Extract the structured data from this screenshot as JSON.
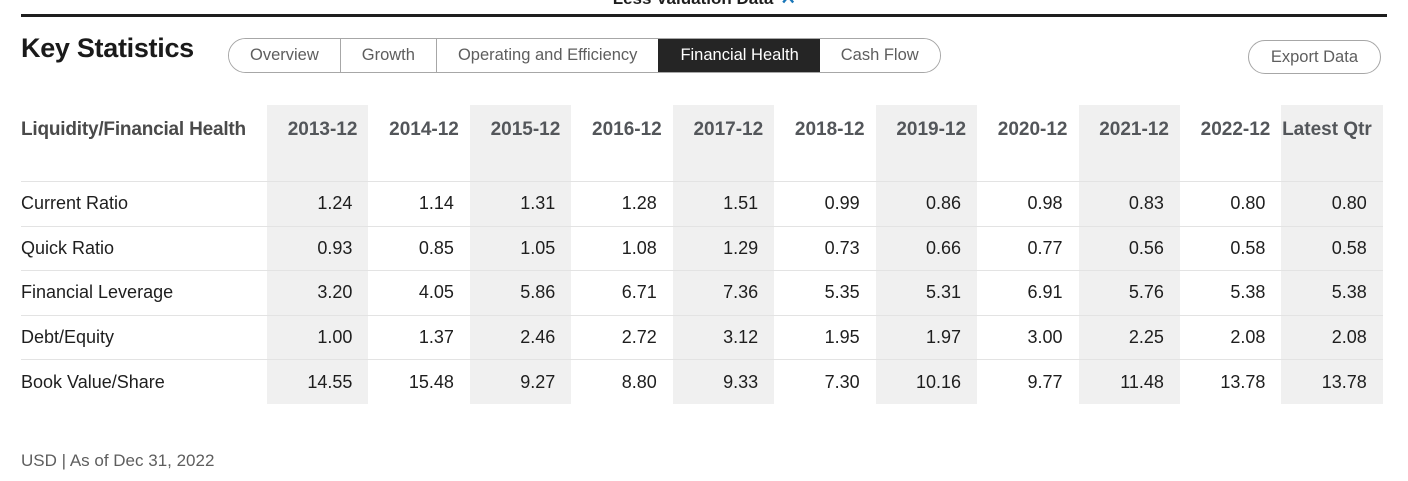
{
  "page": {
    "collapse_link_label": "Less Valuation Data",
    "title": "Key Statistics",
    "export_button_label": "Export Data",
    "footer_note": "USD | As of Dec 31, 2022"
  },
  "tabs": [
    {
      "label": "Overview",
      "active": false
    },
    {
      "label": "Growth",
      "active": false
    },
    {
      "label": "Operating and Efficiency",
      "active": false
    },
    {
      "label": "Financial Health",
      "active": true
    },
    {
      "label": "Cash Flow",
      "active": false
    }
  ],
  "table": {
    "row_header": "Liquidity/Financial Health",
    "columns": [
      "2013-12",
      "2014-12",
      "2015-12",
      "2016-12",
      "2017-12",
      "2018-12",
      "2019-12",
      "2020-12",
      "2021-12",
      "2022-12",
      "Latest Qtr"
    ],
    "striped_column_indexes": [
      0,
      2,
      4,
      6,
      8,
      10
    ],
    "rows": [
      {
        "label": "Current Ratio",
        "values": [
          "1.24",
          "1.14",
          "1.31",
          "1.28",
          "1.51",
          "0.99",
          "0.86",
          "0.98",
          "0.83",
          "0.80",
          "0.80"
        ]
      },
      {
        "label": "Quick Ratio",
        "values": [
          "0.93",
          "0.85",
          "1.05",
          "1.08",
          "1.29",
          "0.73",
          "0.66",
          "0.77",
          "0.56",
          "0.58",
          "0.58"
        ]
      },
      {
        "label": "Financial Leverage",
        "values": [
          "3.20",
          "4.05",
          "5.86",
          "6.71",
          "7.36",
          "5.35",
          "5.31",
          "6.91",
          "5.76",
          "5.38",
          "5.38"
        ]
      },
      {
        "label": "Debt/Equity",
        "values": [
          "1.00",
          "1.37",
          "2.46",
          "2.72",
          "3.12",
          "1.95",
          "1.97",
          "3.00",
          "2.25",
          "2.08",
          "2.08"
        ]
      },
      {
        "label": "Book Value/Share",
        "values": [
          "14.55",
          "15.48",
          "9.27",
          "8.80",
          "9.33",
          "7.30",
          "10.16",
          "9.77",
          "11.48",
          "13.78",
          "13.78"
        ]
      }
    ]
  },
  "colors": {
    "accent_blue": "#1976b8",
    "active_tab_bg": "#252525",
    "stripe_bg": "#f0f0f0",
    "rule": "#1e1e1e",
    "pill_border": "#a7a7a7",
    "muted_text": "#5e5e5e",
    "header_text": "#53565a",
    "separator": "#e3e3e3"
  }
}
